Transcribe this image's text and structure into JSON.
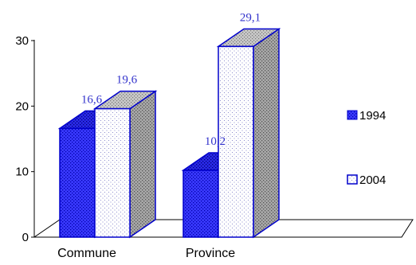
{
  "chart_data": {
    "type": "bar",
    "categories": [
      "Commune",
      "Province"
    ],
    "series": [
      {
        "name": "1994",
        "values": [
          16.6,
          10.2
        ],
        "labels": [
          "16,6",
          "10,2"
        ]
      },
      {
        "name": "2004",
        "values": [
          19.6,
          29.1
        ],
        "labels": [
          "19,6",
          "29,1"
        ]
      }
    ],
    "ylim": [
      0,
      30
    ],
    "yticks": [
      "0",
      "10",
      "20",
      "30"
    ],
    "title": "",
    "xlabel": "",
    "ylabel": "",
    "legend": "right",
    "grid": false,
    "three_d": true
  },
  "colors": {
    "series_1994": "#3333ff",
    "series_2004": "#ffffff",
    "outline": "#0000cc",
    "side_2004": "#999999",
    "label": "#3333cc"
  }
}
